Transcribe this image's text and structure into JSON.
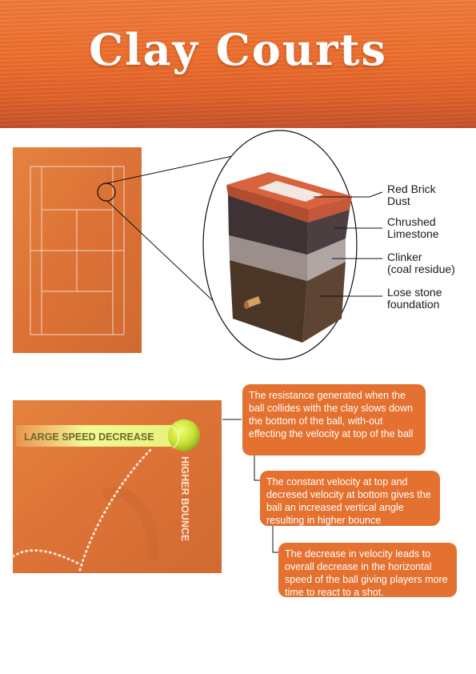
{
  "title": "Clay Courts",
  "layers": [
    {
      "label": "Red Brick\nDust"
    },
    {
      "label": "Chrushed\nLimestone"
    },
    {
      "label": "Clinker\n(coal residue)"
    },
    {
      "label": "Lose stone\nfoundation"
    }
  ],
  "photo": {
    "speed_label": "LARGE SPEED DECREASE",
    "bounce_label": "HIGHER BOUNCE"
  },
  "notes": [
    "The resistance generated when the ball collides with the clay slows down the bottom of the ball, with-out effecting the velocity at top of the ball",
    "The constant velocity at top and decresed velocity at bottom gives the ball an increased vertical angle resulting in higher bounce",
    "The decrease in velocity leads to overall decrease in the horizontal speed of the ball giving players more time to react to a shot."
  ],
  "colors": {
    "clay": "#e07a3c",
    "accent": "#e4712f",
    "court_line": "#f2d6c4"
  }
}
